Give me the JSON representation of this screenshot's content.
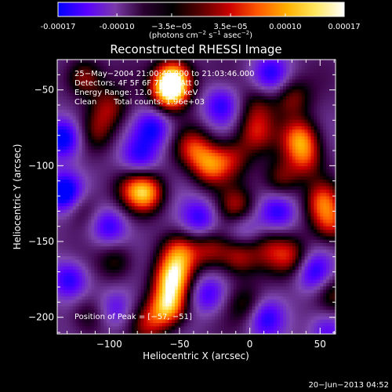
{
  "colorbar": {
    "ticks": [
      "-0.00017",
      "-0.00010",
      "−3.5e−05",
      "3.5e−05",
      "0.00010",
      "0.00017"
    ],
    "tick_values": [
      -0.00017,
      -0.0001,
      -3.5e-05,
      3.5e-05,
      0.0001,
      0.00017
    ],
    "range": [
      -0.00017,
      0.00017
    ],
    "units_main": "(photons cm",
    "units_sup1": "−2",
    "units_mid": " s",
    "units_sup2": "−1",
    "units_mid2": " asec",
    "units_sup3": "−2",
    "units_end": ")",
    "colors": [
      "#0000ff",
      "#5a00ff",
      "#7a3aa8",
      "#2a0030",
      "#000000",
      "#5a0000",
      "#cc0000",
      "#ff5a00",
      "#ffb000",
      "#ffe860",
      "#ffffff"
    ]
  },
  "chart_data": {
    "type": "heatmap",
    "title": "Reconstructed RHESSI Image",
    "xlabel": "Heliocentric X (arcsec)",
    "ylabel": "Heliocentric Y (arcsec)",
    "xlim": [
      -137,
      61
    ],
    "ylim": [
      -211,
      -30
    ],
    "xticks": [
      -100,
      -50,
      0,
      50
    ],
    "xtick_labels": [
      "−100",
      "−50",
      "0",
      "50"
    ],
    "yticks": [
      -200,
      -150,
      -100,
      -50
    ],
    "ytick_labels": [
      "−200",
      "−150",
      "−100",
      "−50"
    ],
    "peak": [
      -57,
      -51
    ],
    "blobs": [
      {
        "x": -57,
        "y": -51,
        "v": 1.0
      },
      {
        "x": -54,
        "y": -42,
        "v": 0.85
      },
      {
        "x": -118,
        "y": -42,
        "v": 0.55
      },
      {
        "x": -100,
        "y": -62,
        "v": 0.45
      },
      {
        "x": -108,
        "y": -78,
        "v": 0.35
      },
      {
        "x": -40,
        "y": -88,
        "v": 0.55
      },
      {
        "x": -28,
        "y": -100,
        "v": 0.7
      },
      {
        "x": -12,
        "y": -95,
        "v": 0.45
      },
      {
        "x": 4,
        "y": -78,
        "v": 0.5
      },
      {
        "x": 6,
        "y": -60,
        "v": 0.35
      },
      {
        "x": 30,
        "y": -55,
        "v": 0.45
      },
      {
        "x": 36,
        "y": -82,
        "v": 0.75
      },
      {
        "x": 40,
        "y": -96,
        "v": 0.5
      },
      {
        "x": 22,
        "y": -110,
        "v": 0.45
      },
      {
        "x": -73,
        "y": -118,
        "v": 0.75
      },
      {
        "x": -83,
        "y": -115,
        "v": 0.4
      },
      {
        "x": -120,
        "y": -128,
        "v": 0.35
      },
      {
        "x": -9,
        "y": -128,
        "v": 0.55
      },
      {
        "x": 50,
        "y": -122,
        "v": 0.8
      },
      {
        "x": 58,
        "y": -138,
        "v": 0.55
      },
      {
        "x": -95,
        "y": -163,
        "v": 0.4
      },
      {
        "x": -50,
        "y": -158,
        "v": 0.65
      },
      {
        "x": -28,
        "y": -155,
        "v": 0.5
      },
      {
        "x": -8,
        "y": -160,
        "v": 0.55
      },
      {
        "x": 14,
        "y": -155,
        "v": 0.35
      },
      {
        "x": 30,
        "y": -160,
        "v": 0.5
      },
      {
        "x": -55,
        "y": -175,
        "v": 0.9
      },
      {
        "x": -58,
        "y": -193,
        "v": 0.95
      },
      {
        "x": -72,
        "y": -205,
        "v": 0.45
      },
      {
        "x": -2,
        "y": -192,
        "v": 0.4
      },
      {
        "x": -115,
        "y": -200,
        "v": 0.35
      },
      {
        "x": 60,
        "y": -185,
        "v": 0.4
      },
      {
        "x": -132,
        "y": -82,
        "v": -0.7
      },
      {
        "x": -132,
        "y": -118,
        "v": -0.75
      },
      {
        "x": -128,
        "y": -175,
        "v": -0.55
      },
      {
        "x": -100,
        "y": -140,
        "v": -0.5
      },
      {
        "x": -68,
        "y": -75,
        "v": -0.55
      },
      {
        "x": -78,
        "y": -95,
        "v": -0.45
      },
      {
        "x": -20,
        "y": -60,
        "v": -0.5
      },
      {
        "x": -5,
        "y": -140,
        "v": -0.4
      },
      {
        "x": 45,
        "y": -120,
        "v": -0.3
      },
      {
        "x": -30,
        "y": -185,
        "v": -0.45
      },
      {
        "x": 10,
        "y": -200,
        "v": -0.5
      },
      {
        "x": 45,
        "y": -170,
        "v": -0.5
      },
      {
        "x": 55,
        "y": -208,
        "v": -0.45
      },
      {
        "x": -95,
        "y": -195,
        "v": -0.4
      },
      {
        "x": 15,
        "y": -40,
        "v": -0.45
      },
      {
        "x": -35,
        "y": -135,
        "v": -0.5
      },
      {
        "x": 20,
        "y": -130,
        "v": -0.45
      }
    ]
  },
  "info": {
    "line1": "25−May−2004 21:00:40.000 to 21:03:46.000",
    "line2": "Detectors: 4F 5F 6F 7F 8F, Att 0",
    "line3": "Energy Range: 12.0 − 25.0 keV",
    "line4a": "Clean",
    "line4b": "Total counts: 1.96e+03",
    "peak_label": "Position of Peak = [−57, −51]"
  },
  "footer": {
    "date": "20−Jun−2013 04:52"
  }
}
